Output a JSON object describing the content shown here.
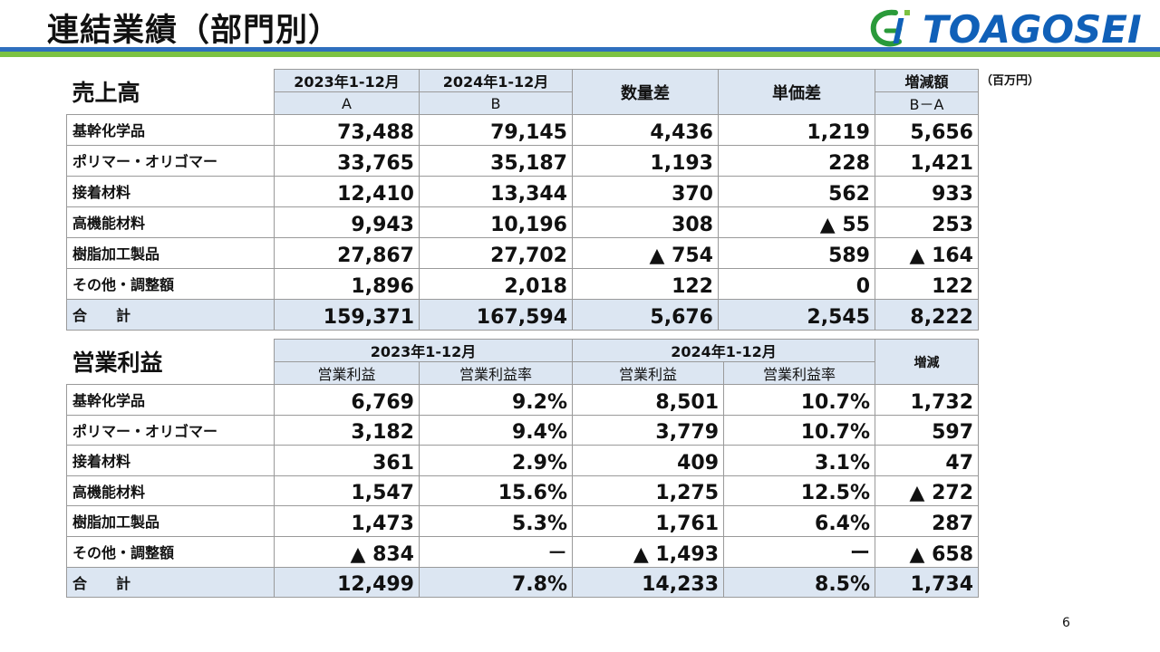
{
  "title": "連結業績（部門別）",
  "logo": {
    "text": "TOAGOSEI"
  },
  "unit": "（百万円）",
  "page_number": "6",
  "sales": {
    "section": "売上高",
    "col_2023": "2023年1-12月",
    "col_2023_sub": "A",
    "col_2024": "2024年1-12月",
    "col_2024_sub": "B",
    "col_qty": "数量差",
    "col_price": "単価差",
    "col_diff": "増減額",
    "col_diff_sub": "B－A",
    "rows": [
      {
        "label": "基幹化学品",
        "v2023": "73,488",
        "v2024": "79,145",
        "qty": "4,436",
        "price": "1,219",
        "diff": "5,656"
      },
      {
        "label": "ポリマー・オリゴマー",
        "v2023": "33,765",
        "v2024": "35,187",
        "qty": "1,193",
        "price": "228",
        "diff": "1,421"
      },
      {
        "label": "接着材料",
        "v2023": "12,410",
        "v2024": "13,344",
        "qty": "370",
        "price": "562",
        "diff": "933"
      },
      {
        "label": "高機能材料",
        "v2023": "9,943",
        "v2024": "10,196",
        "qty": "308",
        "price": "▲ 55",
        "diff": "253"
      },
      {
        "label": "樹脂加工製品",
        "v2023": "27,867",
        "v2024": "27,702",
        "qty": "▲ 754",
        "price": "589",
        "diff": "▲ 164"
      },
      {
        "label": "その他・調整額",
        "v2023": "1,896",
        "v2024": "2,018",
        "qty": "122",
        "price": "0",
        "diff": "122"
      },
      {
        "label": "合　　計",
        "v2023": "159,371",
        "v2024": "167,594",
        "qty": "5,676",
        "price": "2,545",
        "diff": "8,222"
      }
    ]
  },
  "op": {
    "section": "営業利益",
    "col_2023": "2023年1-12月",
    "col_2024": "2024年1-12月",
    "sub_profit": "営業利益",
    "sub_rate": "営業利益率",
    "col_diff": "増減",
    "rows": [
      {
        "label": "基幹化学品",
        "p2023": "6,769",
        "r2023": "9.2%",
        "p2024": "8,501",
        "r2024": "10.7%",
        "diff": "1,732"
      },
      {
        "label": "ポリマー・オリゴマー",
        "p2023": "3,182",
        "r2023": "9.4%",
        "p2024": "3,779",
        "r2024": "10.7%",
        "diff": "597"
      },
      {
        "label": "接着材料",
        "p2023": "361",
        "r2023": "2.9%",
        "p2024": "409",
        "r2024": "3.1%",
        "diff": "47"
      },
      {
        "label": "高機能材料",
        "p2023": "1,547",
        "r2023": "15.6%",
        "p2024": "1,275",
        "r2024": "12.5%",
        "diff": "▲ 272"
      },
      {
        "label": "樹脂加工製品",
        "p2023": "1,473",
        "r2023": "5.3%",
        "p2024": "1,761",
        "r2024": "6.4%",
        "diff": "287"
      },
      {
        "label": "その他・調整額",
        "p2023": "▲ 834",
        "r2023": "－",
        "p2024": "▲ 1,493",
        "r2024": "ー",
        "diff": "▲ 658"
      },
      {
        "label": "合　　計",
        "p2023": "12,499",
        "r2023": "7.8%",
        "p2024": "14,233",
        "r2024": "8.5%",
        "diff": "1,734"
      }
    ]
  }
}
